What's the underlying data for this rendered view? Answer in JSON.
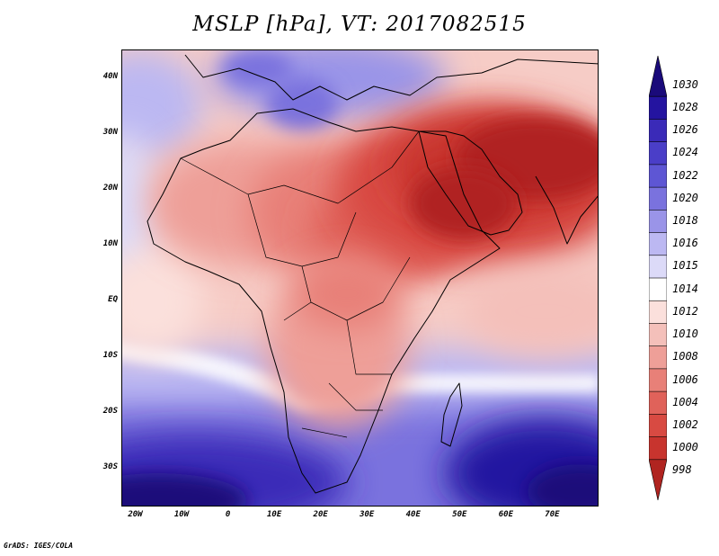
{
  "title": "MSLP [hPa], VT: 2017082515",
  "credit": "GrADS: IGES/COLA",
  "map": {
    "projection": "lat-lon",
    "lon_range": [
      -23,
      80
    ],
    "lat_range": [
      -37,
      45
    ],
    "lat_labels": [
      {
        "lat": 40,
        "text": "40N"
      },
      {
        "lat": 30,
        "text": "30N"
      },
      {
        "lat": 20,
        "text": "20N"
      },
      {
        "lat": 10,
        "text": "10N"
      },
      {
        "lat": 0,
        "text": "EQ"
      },
      {
        "lat": -10,
        "text": "10S"
      },
      {
        "lat": -20,
        "text": "20S"
      },
      {
        "lat": -30,
        "text": "30S"
      }
    ],
    "lon_labels": [
      {
        "lon": -20,
        "text": "20W"
      },
      {
        "lon": -10,
        "text": "10W"
      },
      {
        "lon": 0,
        "text": "0"
      },
      {
        "lon": 10,
        "text": "10E"
      },
      {
        "lon": 20,
        "text": "20E"
      },
      {
        "lon": 30,
        "text": "30E"
      },
      {
        "lon": 40,
        "text": "40E"
      },
      {
        "lon": 50,
        "text": "50E"
      },
      {
        "lon": 60,
        "text": "60E"
      },
      {
        "lon": 70,
        "text": "70E"
      }
    ]
  },
  "legend": {
    "unit": "hPa",
    "levels": [
      {
        "text": "1030",
        "color": "#1a0a7a"
      },
      {
        "text": "1028",
        "color": "#2414a0"
      },
      {
        "text": "1026",
        "color": "#3a2ab8"
      },
      {
        "text": "1024",
        "color": "#4a3ec8"
      },
      {
        "text": "1022",
        "color": "#5e56d4"
      },
      {
        "text": "1020",
        "color": "#7a72de"
      },
      {
        "text": "1018",
        "color": "#9a94e8"
      },
      {
        "text": "1016",
        "color": "#bcb8f2"
      },
      {
        "text": "1015",
        "color": "#dcdaf8"
      },
      {
        "text": "1014",
        "color": "#ffffff"
      },
      {
        "text": "1012",
        "color": "#fbe0dc"
      },
      {
        "text": "1010",
        "color": "#f4c0ba"
      },
      {
        "text": "1008",
        "color": "#ee9f98"
      },
      {
        "text": "1006",
        "color": "#e88078"
      },
      {
        "text": "1004",
        "color": "#e0625a"
      },
      {
        "text": "1002",
        "color": "#d84a42"
      },
      {
        "text": "1000",
        "color": "#c8342e"
      },
      {
        "text": "998",
        "color": "#b02420"
      }
    ]
  }
}
